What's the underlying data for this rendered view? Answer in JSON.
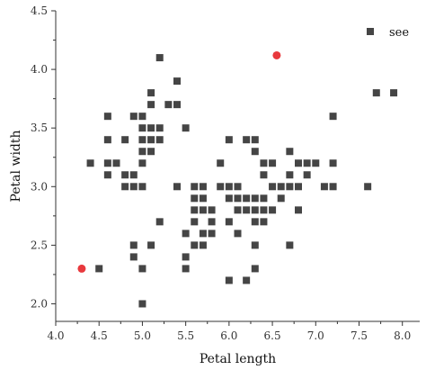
{
  "chart_data": {
    "type": "scatter",
    "xlabel": "Petal length",
    "ylabel": "Petal width",
    "xlim": [
      4.0,
      8.2
    ],
    "ylim": [
      1.85,
      4.5
    ],
    "xticks": [
      4.0,
      4.5,
      5.0,
      5.5,
      6.0,
      6.5,
      7.0,
      7.5,
      8.0
    ],
    "xtick_labels": [
      "4.0",
      "4.5",
      "5.0",
      "5.5",
      "6.0",
      "6.5",
      "7.0",
      "7.5",
      "8.0"
    ],
    "yticks": [
      2.0,
      2.5,
      3.0,
      3.5,
      4.0,
      4.5
    ],
    "ytick_labels": [
      "2.0",
      "2.5",
      "3.0",
      "3.5",
      "4.0",
      "4.5"
    ],
    "legend": {
      "position": "top-right"
    },
    "series": [
      {
        "name": "see",
        "marker": "square",
        "color": "#454545",
        "points": [
          [
            4.4,
            3.2
          ],
          [
            4.5,
            2.3
          ],
          [
            4.6,
            3.6
          ],
          [
            4.6,
            3.4
          ],
          [
            4.6,
            3.2
          ],
          [
            4.6,
            3.1
          ],
          [
            4.7,
            3.2
          ],
          [
            4.8,
            3.4
          ],
          [
            4.8,
            3.1
          ],
          [
            4.8,
            3.0
          ],
          [
            4.9,
            3.6
          ],
          [
            4.9,
            3.1
          ],
          [
            4.9,
            3.0
          ],
          [
            4.9,
            2.5
          ],
          [
            4.9,
            2.4
          ],
          [
            5.0,
            3.6
          ],
          [
            5.0,
            3.5
          ],
          [
            5.0,
            3.4
          ],
          [
            5.0,
            3.3
          ],
          [
            5.0,
            3.2
          ],
          [
            5.0,
            3.0
          ],
          [
            5.0,
            2.3
          ],
          [
            5.0,
            2.0
          ],
          [
            5.1,
            3.8
          ],
          [
            5.1,
            3.7
          ],
          [
            5.1,
            3.5
          ],
          [
            5.1,
            3.4
          ],
          [
            5.1,
            3.3
          ],
          [
            5.1,
            2.5
          ],
          [
            5.2,
            4.1
          ],
          [
            5.2,
            3.5
          ],
          [
            5.2,
            3.4
          ],
          [
            5.2,
            2.7
          ],
          [
            5.3,
            3.7
          ],
          [
            5.4,
            3.9
          ],
          [
            5.4,
            3.7
          ],
          [
            5.4,
            3.0
          ],
          [
            5.5,
            3.5
          ],
          [
            5.5,
            2.6
          ],
          [
            5.5,
            2.4
          ],
          [
            5.5,
            2.3
          ],
          [
            5.6,
            3.0
          ],
          [
            5.6,
            2.9
          ],
          [
            5.6,
            2.8
          ],
          [
            5.6,
            2.7
          ],
          [
            5.6,
            2.5
          ],
          [
            5.7,
            3.0
          ],
          [
            5.7,
            2.9
          ],
          [
            5.7,
            2.8
          ],
          [
            5.7,
            2.6
          ],
          [
            5.7,
            2.5
          ],
          [
            5.8,
            2.8
          ],
          [
            5.8,
            2.7
          ],
          [
            5.8,
            2.6
          ],
          [
            5.9,
            3.0
          ],
          [
            5.9,
            3.2
          ],
          [
            6.0,
            3.4
          ],
          [
            6.0,
            3.0
          ],
          [
            6.0,
            2.9
          ],
          [
            6.0,
            2.7
          ],
          [
            6.0,
            2.2
          ],
          [
            6.1,
            3.0
          ],
          [
            6.1,
            2.9
          ],
          [
            6.1,
            2.8
          ],
          [
            6.1,
            2.6
          ],
          [
            6.2,
            3.4
          ],
          [
            6.2,
            2.9
          ],
          [
            6.2,
            2.8
          ],
          [
            6.2,
            2.2
          ],
          [
            6.3,
            3.4
          ],
          [
            6.3,
            3.3
          ],
          [
            6.3,
            2.9
          ],
          [
            6.3,
            2.8
          ],
          [
            6.3,
            2.7
          ],
          [
            6.3,
            2.5
          ],
          [
            6.3,
            2.3
          ],
          [
            6.4,
            3.2
          ],
          [
            6.4,
            3.1
          ],
          [
            6.4,
            2.9
          ],
          [
            6.4,
            2.8
          ],
          [
            6.4,
            2.7
          ],
          [
            6.5,
            3.2
          ],
          [
            6.5,
            3.0
          ],
          [
            6.5,
            2.8
          ],
          [
            6.6,
            3.0
          ],
          [
            6.6,
            2.9
          ],
          [
            6.7,
            3.3
          ],
          [
            6.7,
            3.1
          ],
          [
            6.7,
            3.0
          ],
          [
            6.7,
            2.5
          ],
          [
            6.8,
            3.2
          ],
          [
            6.8,
            3.0
          ],
          [
            6.8,
            2.8
          ],
          [
            6.9,
            3.1
          ],
          [
            6.9,
            3.2
          ],
          [
            7.0,
            3.2
          ],
          [
            7.1,
            3.0
          ],
          [
            7.2,
            3.6
          ],
          [
            7.2,
            3.2
          ],
          [
            7.2,
            3.0
          ],
          [
            7.6,
            3.0
          ],
          [
            7.7,
            3.8
          ],
          [
            7.9,
            3.8
          ]
        ]
      },
      {
        "name": "",
        "marker": "circle",
        "color": "#e8393d",
        "points": [
          [
            4.3,
            2.3
          ],
          [
            6.55,
            4.12
          ]
        ]
      }
    ]
  }
}
